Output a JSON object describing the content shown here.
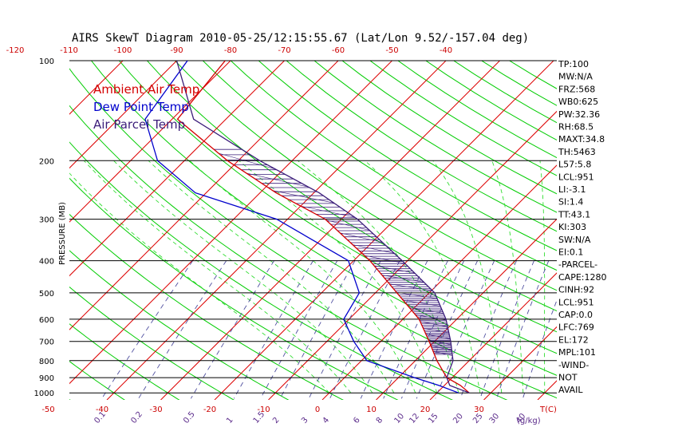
{
  "chart_data": {
    "type": "line",
    "chart_kind": "Skew-T log-P sounding",
    "title": "AIRS SkewT Diagram 2010-05-25/12:15:55.67 (Lat/Lon 9.52/-157.04 deg)",
    "ylabel": "PRESSURE (MB)",
    "y_scale": "log",
    "ylim": [
      1000,
      100
    ],
    "pressure_ticks": [
      "100",
      "200",
      "300",
      "400",
      "500",
      "600",
      "700",
      "800",
      "900",
      "1000"
    ],
    "top_temp_ticks": [
      "-120",
      "-110",
      "-100",
      "-90",
      "-80",
      "-70",
      "-60",
      "-50",
      "-40"
    ],
    "bottom_temp_ticks": [
      "-50",
      "-40",
      "-30",
      "-20",
      "-10",
      "0",
      "10",
      "20",
      "30"
    ],
    "bottom_temp_unit": "T(C)",
    "mixing_ratio_ticks": [
      "0.1",
      "0.2",
      "0.5",
      "1",
      "1.5",
      "2",
      "3",
      "4",
      "6",
      "8",
      "10",
      "12",
      "15",
      "20",
      "25",
      "30",
      "40"
    ],
    "mixing_ratio_unit": "(g/kg)",
    "legend": [
      "Ambient Air Temp",
      "Dew Point Temp",
      "Air Parcel Temp"
    ],
    "legend_placement": "top-left",
    "grid": true,
    "colors": {
      "ambient": "#d40000",
      "dewpoint": "#0000cc",
      "parcel": "#3b1d7a",
      "dry_adiabat": "#00cc00",
      "moist_adiabat": "#33dd33",
      "isotherm": "#dd0000",
      "mixing_ratio": "#5050a0",
      "isobar": "#000000"
    },
    "series": [
      {
        "name": "Ambient Air Temp",
        "points": [
          {
            "p": 100,
            "t": -81
          },
          {
            "p": 150,
            "t": -79
          },
          {
            "p": 200,
            "t": -62
          },
          {
            "p": 250,
            "t": -47
          },
          {
            "p": 300,
            "t": -33
          },
          {
            "p": 400,
            "t": -17
          },
          {
            "p": 500,
            "t": -6
          },
          {
            "p": 600,
            "t": 3
          },
          {
            "p": 700,
            "t": 9
          },
          {
            "p": 800,
            "t": 14
          },
          {
            "p": 900,
            "t": 19
          },
          {
            "p": 950,
            "t": 23
          },
          {
            "p": 1000,
            "t": 26
          }
        ]
      },
      {
        "name": "Dew Point Temp",
        "points": [
          {
            "p": 100,
            "t": -88
          },
          {
            "p": 150,
            "t": -85
          },
          {
            "p": 200,
            "t": -75
          },
          {
            "p": 250,
            "t": -62
          },
          {
            "p": 300,
            "t": -42
          },
          {
            "p": 400,
            "t": -21
          },
          {
            "p": 500,
            "t": -13
          },
          {
            "p": 600,
            "t": -11
          },
          {
            "p": 700,
            "t": -5
          },
          {
            "p": 800,
            "t": 1
          },
          {
            "p": 900,
            "t": 13
          },
          {
            "p": 950,
            "t": 19
          },
          {
            "p": 1000,
            "t": 24
          }
        ]
      },
      {
        "name": "Air Parcel Temp",
        "points": [
          {
            "p": 100,
            "t": -90
          },
          {
            "p": 150,
            "t": -76
          },
          {
            "p": 200,
            "t": -56
          },
          {
            "p": 250,
            "t": -39
          },
          {
            "p": 300,
            "t": -27
          },
          {
            "p": 400,
            "t": -11
          },
          {
            "p": 500,
            "t": 1
          },
          {
            "p": 600,
            "t": 8
          },
          {
            "p": 700,
            "t": 13
          },
          {
            "p": 800,
            "t": 17
          },
          {
            "p": 900,
            "t": 19
          },
          {
            "p": 950,
            "t": 21
          },
          {
            "p": 1000,
            "t": 26
          }
        ]
      }
    ],
    "indices": [
      "TP:100",
      "MW:N/A",
      "FRZ:568",
      "WB0:625",
      "PW:32.36",
      "RH:68.5",
      "MAXT:34.8",
      "TH:5463",
      "L57:5.8",
      "LCL:951",
      "LI:-3.1",
      "SI:1.4",
      "TT:43.1",
      "KI:303",
      "SW:N/A",
      "EI:0.1",
      "-PARCEL-",
      "CAPE:1280",
      "CINH:92",
      "LCL:951",
      "CAP:0.0",
      "LFC:769",
      "EL:172",
      "MPL:101",
      "-WIND-",
      "NOT",
      "AVAIL"
    ]
  }
}
